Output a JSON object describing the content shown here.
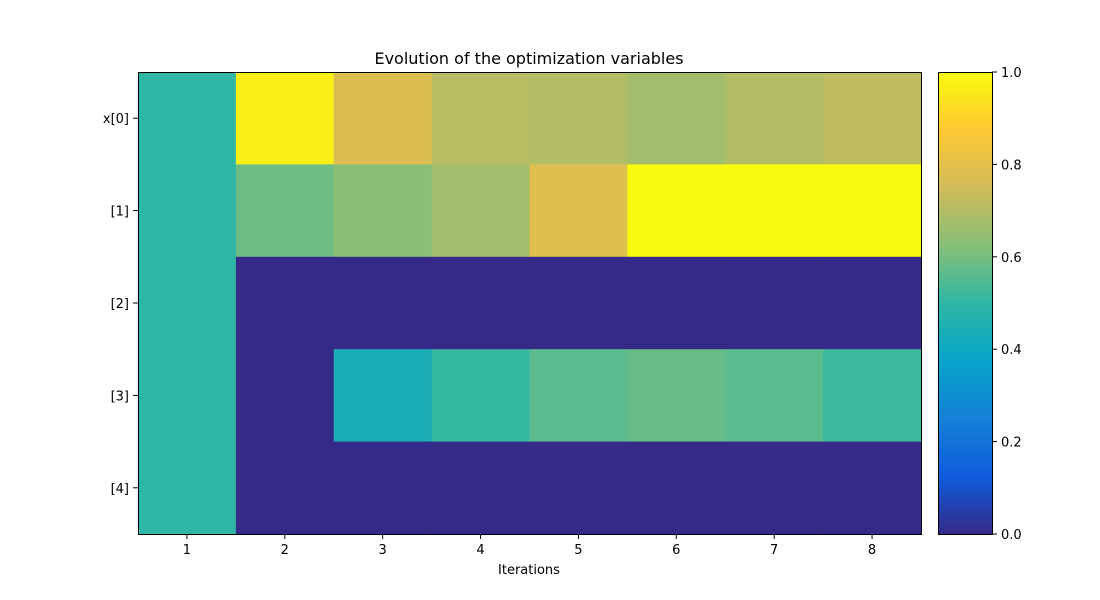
{
  "chart_data": {
    "type": "heatmap",
    "title": "Evolution of the optimization variables",
    "xlabel": "Iterations",
    "ylabel": "",
    "x_categories": [
      "1",
      "2",
      "3",
      "4",
      "5",
      "6",
      "7",
      "8"
    ],
    "y_categories": [
      "x[0]",
      "[1]",
      "[2]",
      "[3]",
      "[4]"
    ],
    "values": [
      [
        0.5,
        0.97,
        0.78,
        0.71,
        0.7,
        0.67,
        0.7,
        0.72
      ],
      [
        0.5,
        0.59,
        0.63,
        0.67,
        0.79,
        1.0,
        1.0,
        1.0
      ],
      [
        0.5,
        0.0,
        0.0,
        0.0,
        0.0,
        0.0,
        0.0,
        0.0
      ],
      [
        0.5,
        0.0,
        0.44,
        0.51,
        0.56,
        0.58,
        0.56,
        0.52
      ],
      [
        0.5,
        0.0,
        0.0,
        0.0,
        0.0,
        0.0,
        0.0,
        0.0
      ]
    ],
    "colorbar": {
      "min": 0.0,
      "max": 1.0,
      "ticks": [
        "0.0",
        "0.2",
        "0.4",
        "0.6",
        "0.8",
        "1.0"
      ]
    },
    "colormap": [
      "#352a87",
      "#0f5cdd",
      "#1481d6",
      "#06a4ca",
      "#2eb7a4",
      "#87bf77",
      "#d1bb59",
      "#fec832",
      "#f9fb0e"
    ],
    "grid": false,
    "legend": "none"
  }
}
